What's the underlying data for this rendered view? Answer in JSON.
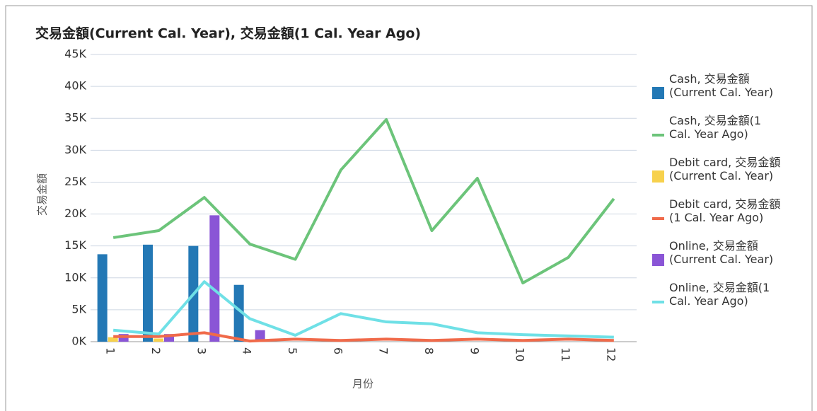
{
  "chart_data": {
    "type": "bar",
    "title": "交易金額(Current Cal. Year), 交易金額(1 Cal. Year Ago)",
    "y_label": "交易金額",
    "x_label": "月份",
    "categories": [
      "1",
      "2",
      "3",
      "4",
      "5",
      "6",
      "7",
      "8",
      "9",
      "10",
      "11",
      "12"
    ],
    "ylim": [
      0,
      45000
    ],
    "yticks": [
      {
        "value": 0,
        "label": "0K"
      },
      {
        "value": 5000,
        "label": "5K"
      },
      {
        "value": 10000,
        "label": "10K"
      },
      {
        "value": 15000,
        "label": "15K"
      },
      {
        "value": 20000,
        "label": "20K"
      },
      {
        "value": 25000,
        "label": "25K"
      },
      {
        "value": 30000,
        "label": "30K"
      },
      {
        "value": 35000,
        "label": "35K"
      },
      {
        "value": 40000,
        "label": "40K"
      },
      {
        "value": 45000,
        "label": "45K"
      }
    ],
    "grid": true,
    "legend": "right",
    "series": [
      {
        "name": "Cash, 交易金額(Current Cal. Year)",
        "type": "bar",
        "color": "#2378b5",
        "values": [
          13700,
          15200,
          15000,
          8900,
          null,
          null,
          null,
          null,
          null,
          null,
          null,
          null
        ]
      },
      {
        "name": "Cash, 交易金額(1 Cal. Year Ago)",
        "type": "line",
        "color": "#6cc47a",
        "values": [
          16300,
          17400,
          22600,
          15300,
          12900,
          26900,
          34800,
          17400,
          25600,
          9200,
          13200,
          22400
        ]
      },
      {
        "name": "Debit card, 交易金額(Current Cal. Year)",
        "type": "bar",
        "color": "#f7d14c",
        "values": [
          700,
          500,
          null,
          null,
          null,
          null,
          null,
          null,
          null,
          null,
          null,
          null
        ]
      },
      {
        "name": "Debit card, 交易金額(1 Cal. Year Ago)",
        "type": "line",
        "color": "#f06a4a",
        "values": [
          800,
          800,
          1400,
          100,
          400,
          200,
          400,
          200,
          400,
          200,
          400,
          200
        ]
      },
      {
        "name": "Online, 交易金額(Current Cal. Year)",
        "type": "bar",
        "color": "#8a55d6",
        "values": [
          1200,
          1200,
          19800,
          1800,
          null,
          null,
          null,
          null,
          null,
          null,
          null,
          null
        ]
      },
      {
        "name": "Online, 交易金額(1 Cal. Year Ago)",
        "type": "line",
        "color": "#6fe0e6",
        "values": [
          1800,
          1200,
          9400,
          3600,
          1000,
          4400,
          3100,
          2800,
          1400,
          1100,
          900,
          700
        ]
      }
    ]
  }
}
